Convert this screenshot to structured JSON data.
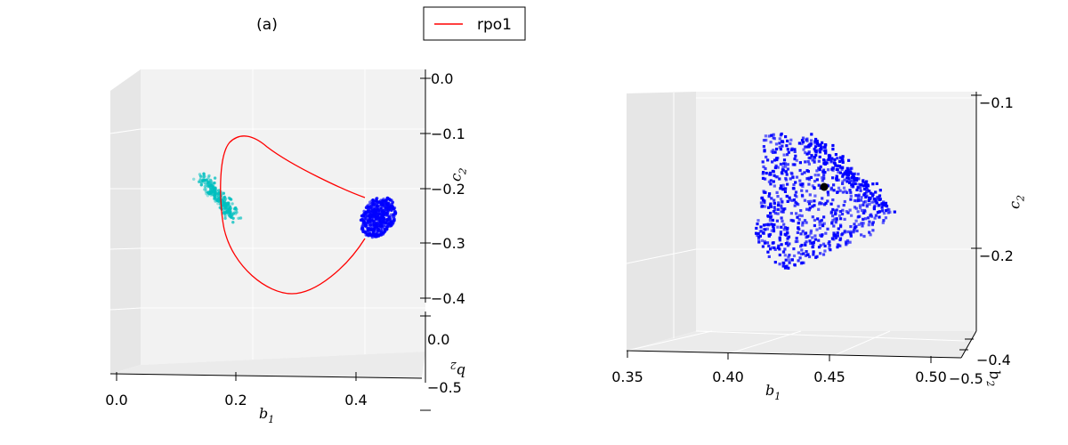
{
  "chart_data": [
    {
      "type": "scatter",
      "projection": "3d",
      "title": "(a)",
      "xlabel": "b1",
      "ylabel": "b2",
      "zlabel": "c2",
      "x_ticks": [
        "0.0",
        "0.2",
        "0.4"
      ],
      "y_ticks": [
        "0.0",
        "−0.5"
      ],
      "z_ticks": [
        "0.0",
        "−0.1",
        "−0.2",
        "−0.3",
        "−0.4"
      ],
      "legend": {
        "placement": "top-right",
        "entries": [
          {
            "label": "rpo1",
            "color": "#ff0000"
          }
        ]
      },
      "grid": true,
      "series": [
        {
          "name": "rpo1",
          "kind": "line",
          "color": "#ff0000",
          "points": [
            [
              0.43,
              -0.22
            ],
            [
              0.34,
              -0.18
            ],
            [
              0.26,
              -0.11
            ],
            [
              0.19,
              -0.12
            ],
            [
              0.17,
              -0.2
            ],
            [
              0.19,
              -0.3
            ],
            [
              0.27,
              -0.39
            ],
            [
              0.35,
              -0.36
            ],
            [
              0.43,
              -0.28
            ]
          ]
        },
        {
          "kind": "scatter-cluster",
          "color": "#00bfbf",
          "center": [
            0.17,
            -0.21
          ],
          "count": 260
        },
        {
          "kind": "scatter-cluster",
          "color": "#0000ff",
          "center": [
            0.44,
            -0.26
          ],
          "count": 400
        }
      ]
    },
    {
      "type": "scatter",
      "projection": "3d",
      "xlabel": "b1",
      "ylabel": "b2",
      "zlabel": "c2",
      "x_ticks": [
        "0.35",
        "0.40",
        "0.45",
        "0.50"
      ],
      "y_ticks": [
        "−0.4",
        "−0.5"
      ],
      "z_ticks": [
        "−0.1",
        "−0.2"
      ],
      "grid": true,
      "series": [
        {
          "kind": "scatter-cloud",
          "color": "#0000ff",
          "count": 700,
          "xlim": [
            0.41,
            0.48
          ],
          "zlim": [
            -0.19,
            -0.12
          ]
        },
        {
          "kind": "marker",
          "color": "#000000",
          "point": [
            0.45,
            -0.155
          ]
        }
      ]
    }
  ]
}
